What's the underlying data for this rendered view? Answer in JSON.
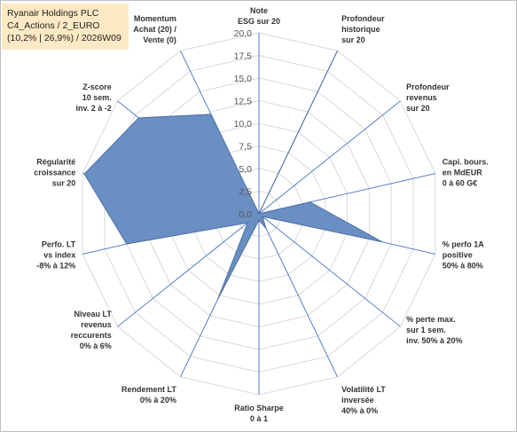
{
  "title": {
    "line1": "Ryanair Holdings PLC",
    "line2": "C4_Actions / 2_EURO",
    "line3": "(10,2% | 26,9%) / 2026W09"
  },
  "colors": {
    "fill": "#6a8fc3",
    "stroke": "#4d6fa3",
    "grid": "#d9d9d9",
    "spoke": "#4472c4"
  },
  "chart_data": {
    "type": "radar",
    "rlim": [
      0,
      20
    ],
    "grid": true,
    "ticks": [
      "0,0",
      "2,5",
      "5,0",
      "7,5",
      "10,0",
      "12,5",
      "15,0",
      "17,5",
      "20,0"
    ],
    "axes": [
      {
        "label": [
          "Note",
          "ESG sur 20"
        ],
        "value": 0
      },
      {
        "label": [
          "Profondeur",
          "historique",
          "sur 20"
        ],
        "value": 20
      },
      {
        "label": [
          "Profondeur",
          "revenus",
          "sur 20"
        ],
        "value": 0
      },
      {
        "label": [
          "Capi. bours.",
          "en MdEUR",
          "0 à 60 G€"
        ],
        "value": 5.8
      },
      {
        "label": [
          "% perfo 1A",
          "positive",
          "50% à 80%"
        ],
        "value": 14
      },
      {
        "label": [
          "% perte max.",
          "sur 1 sem.",
          "inv. 50% à 20%"
        ],
        "value": 0.5
      },
      {
        "label": [
          "Volatilité LT",
          "inversée",
          "40% à 0%"
        ],
        "value": 1.8
      },
      {
        "label": [
          "Ratio Sharpe",
          "0 à 1"
        ],
        "value": 0.7
      },
      {
        "label": [
          "Rendement LT",
          "0% à 20%"
        ],
        "value": 10.5
      },
      {
        "label": [
          "Niveau LT",
          "revenus",
          "reccurents",
          "0% à 6%"
        ],
        "value": 1.6
      },
      {
        "label": [
          "Perfo. LT",
          "vs index",
          "-8% à 12%"
        ],
        "value": 15
      },
      {
        "label": [
          "Régularité",
          "croissance",
          "sur 20"
        ],
        "value": 19.8
      },
      {
        "label": [
          "Z-score",
          "10 sem.",
          "inv. 2 à -2"
        ],
        "value": 17
      },
      {
        "label": [
          "Momentum",
          "Achat (20) /",
          "Vente (0)"
        ],
        "value": 12.2
      }
    ]
  }
}
